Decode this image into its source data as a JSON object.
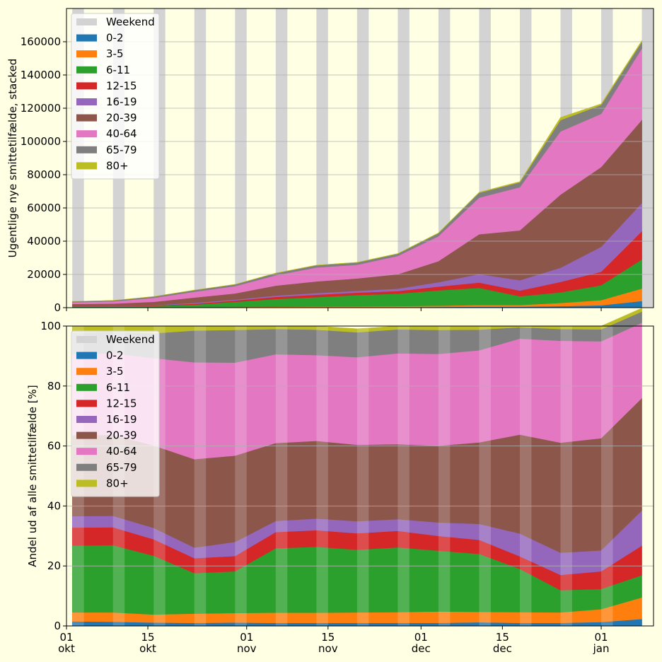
{
  "chart_data": [
    {
      "type": "area",
      "stacked": true,
      "ylabel": "Ugentlige nye smittetilfælde, stacked",
      "ylim": [
        0,
        180000
      ],
      "yticks": [
        0,
        20000,
        40000,
        60000,
        80000,
        100000,
        120000,
        140000,
        160000
      ],
      "ytick_labels": [
        "0",
        "20000",
        "40000",
        "60000",
        "80000",
        "100000",
        "120000",
        "140000",
        "160000"
      ],
      "grid": "horizontal",
      "legend_position": "top-left",
      "background": "#ffffe3",
      "x": [
        "2021-10-02",
        "2021-10-09",
        "2021-10-16",
        "2021-10-23",
        "2021-10-30",
        "2021-11-06",
        "2021-11-13",
        "2021-11-20",
        "2021-11-27",
        "2021-12-04",
        "2021-12-11",
        "2021-12-18",
        "2021-12-25",
        "2022-01-01",
        "2022-01-08"
      ],
      "series": [
        {
          "name": "0-2",
          "color": "#1f77b4",
          "values": [
            60,
            60,
            60,
            80,
            120,
            180,
            230,
            280,
            340,
            420,
            540,
            560,
            900,
            1400,
            4000
          ]
        },
        {
          "name": "3-5",
          "color": "#ff7f0e",
          "values": [
            120,
            120,
            120,
            180,
            270,
            380,
            450,
            480,
            560,
            750,
            1050,
            1000,
            1900,
            3100,
            7500
          ]
        },
        {
          "name": "6-11",
          "color": "#2ca02c",
          "values": [
            750,
            800,
            830,
            1500,
            3100,
            4650,
            5600,
            6800,
            7500,
            9200,
            10300,
            5300,
            6400,
            9000,
            17500
          ]
        },
        {
          "name": "12-15",
          "color": "#d62728",
          "values": [
            220,
            220,
            290,
            590,
            800,
            1250,
            1500,
            1500,
            1600,
            2300,
            3200,
            3400,
            6300,
            8100,
            17000
          ]
        },
        {
          "name": "16-19",
          "color": "#9467bd",
          "values": [
            130,
            130,
            180,
            540,
            550,
            770,
            1000,
            1030,
            1400,
            2600,
            5100,
            6200,
            8500,
            15000,
            17000
          ]
        },
        {
          "name": "20-39",
          "color": "#8c564b",
          "values": [
            950,
            1100,
            2000,
            3200,
            3700,
            6000,
            7000,
            7500,
            8700,
            12700,
            24000,
            30000,
            44000,
            48000,
            50000
          ]
        },
        {
          "name": "40-64",
          "color": "#e377c2",
          "values": [
            1000,
            1300,
            2400,
            3500,
            4400,
            6200,
            8400,
            8200,
            11000,
            15000,
            22000,
            26000,
            38000,
            32000,
            43000
          ]
        },
        {
          "name": "65-79",
          "color": "#7f7f7f",
          "values": [
            500,
            560,
            760,
            910,
            1000,
            1250,
            1250,
            1350,
            1300,
            1800,
            2900,
            2900,
            6800,
            5300,
            3900
          ]
        },
        {
          "name": "80+",
          "color": "#bcbd22",
          "values": [
            70,
            70,
            80,
            90,
            100,
            150,
            200,
            200,
            200,
            250,
            400,
            520,
            1650,
            800,
            900
          ]
        }
      ],
      "weekend": {
        "name": "Weekend",
        "color": "#d3d3d3"
      }
    },
    {
      "type": "area",
      "stacked": true,
      "ylabel": "Andel ud af alle smittetilfælde [%]",
      "ylim": [
        0,
        100
      ],
      "yticks": [
        0,
        20,
        40,
        60,
        80,
        100
      ],
      "ytick_labels": [
        "0",
        "20",
        "40",
        "60",
        "80",
        "100"
      ],
      "grid": "horizontal",
      "legend_position": "top-left",
      "x": [
        "2021-10-02",
        "2021-10-09",
        "2021-10-16",
        "2021-10-23",
        "2021-10-30",
        "2021-11-06",
        "2021-11-13",
        "2021-11-20",
        "2021-11-27",
        "2021-12-04",
        "2021-12-11",
        "2021-12-18",
        "2021-12-25",
        "2022-01-01",
        "2022-01-08"
      ],
      "xticks": [
        "2021-10-01",
        "2021-10-15",
        "2021-11-01",
        "2021-11-15",
        "2021-12-01",
        "2021-12-15",
        "2022-01-01"
      ],
      "xtick_labels": [
        [
          "01",
          "okt"
        ],
        [
          "15",
          "okt"
        ],
        [
          "01",
          "nov"
        ],
        [
          "15",
          "nov"
        ],
        [
          "01",
          "dec"
        ],
        [
          "15",
          "dec"
        ],
        [
          "01",
          "jan"
        ]
      ],
      "series": [
        {
          "name": "0-2",
          "color": "#1f77b4",
          "values": [
            1.5,
            1.4,
            1.1,
            1.0,
            1.1,
            1.0,
            1.0,
            1.0,
            1.0,
            1.0,
            1.2,
            1.0,
            1.0,
            1.3,
            2.3
          ]
        },
        {
          "name": "3-5",
          "color": "#ff7f0e",
          "values": [
            3.0,
            3.1,
            2.7,
            3.1,
            3.2,
            3.4,
            3.4,
            3.5,
            3.6,
            3.8,
            3.5,
            3.6,
            3.5,
            4.3,
            7.2
          ]
        },
        {
          "name": "6-11",
          "color": "#2ca02c",
          "values": [
            22.3,
            22.4,
            19.6,
            13.5,
            13.9,
            21.5,
            22.0,
            20.9,
            21.6,
            20.3,
            19.3,
            14.4,
            7.4,
            6.7,
            7.4
          ]
        },
        {
          "name": "12-15",
          "color": "#d62728",
          "values": [
            6.0,
            6.0,
            5.5,
            5.0,
            5.1,
            5.4,
            5.5,
            5.5,
            5.5,
            4.9,
            4.7,
            4.2,
            5.1,
            5.9,
            9.9
          ]
        },
        {
          "name": "16-19",
          "color": "#9467bd",
          "values": [
            3.8,
            3.8,
            3.8,
            3.5,
            4.7,
            3.7,
            3.9,
            4.0,
            3.9,
            4.5,
            5.3,
            7.6,
            7.4,
            7.0,
            11.7
          ]
        },
        {
          "name": "20-39",
          "color": "#8c564b",
          "values": [
            27.0,
            27.0,
            27.5,
            29.5,
            28.8,
            26.0,
            25.9,
            25.5,
            25.0,
            25.6,
            27.2,
            33.0,
            36.7,
            37.4,
            37.5
          ]
        },
        {
          "name": "40-64",
          "color": "#e377c2",
          "values": [
            27.0,
            27.2,
            29.1,
            32.3,
            31.0,
            29.6,
            28.6,
            29.2,
            30.3,
            30.6,
            30.7,
            32.0,
            34.0,
            32.3,
            25.1
          ]
        },
        {
          "name": "65-79",
          "color": "#7f7f7f",
          "values": [
            7.2,
            7.2,
            8.3,
            10.6,
            10.9,
            8.4,
            8.5,
            8.3,
            8.0,
            8.0,
            6.9,
            3.8,
            3.9,
            4.0,
            3.7
          ]
        },
        {
          "name": "80+",
          "color": "#bcbd22",
          "values": [
            2.2,
            1.9,
            2.4,
            1.5,
            1.3,
            1.0,
            1.2,
            1.2,
            1.1,
            1.3,
            1.2,
            0.4,
            1.0,
            1.1,
            1.2
          ]
        }
      ],
      "weekend": {
        "name": "Weekend",
        "color": "#ffffff"
      }
    }
  ]
}
